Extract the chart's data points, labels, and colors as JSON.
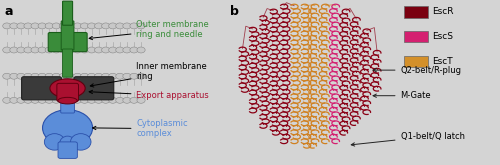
{
  "fig_width": 5.0,
  "fig_height": 1.65,
  "dpi": 100,
  "bg_color": "#d4d4d4",
  "panel_a_label": "a",
  "panel_b_label": "b",
  "label_fontsize": 9,
  "label_fontweight": "bold",
  "legend_items": [
    {
      "label": "EscR",
      "color": "#7a0010"
    },
    {
      "label": "EscS",
      "color": "#d42070"
    },
    {
      "label": "EscT",
      "color": "#d4902a"
    }
  ],
  "legend_fontsize": 6.5,
  "green_color": "#3a8c3a",
  "dark_red_color": "#aa1030",
  "blue_color": "#5b8dd9",
  "grey_color": "#444444",
  "membrane_head_color": "#c8c8c8",
  "membrane_head_edge": "#888888"
}
